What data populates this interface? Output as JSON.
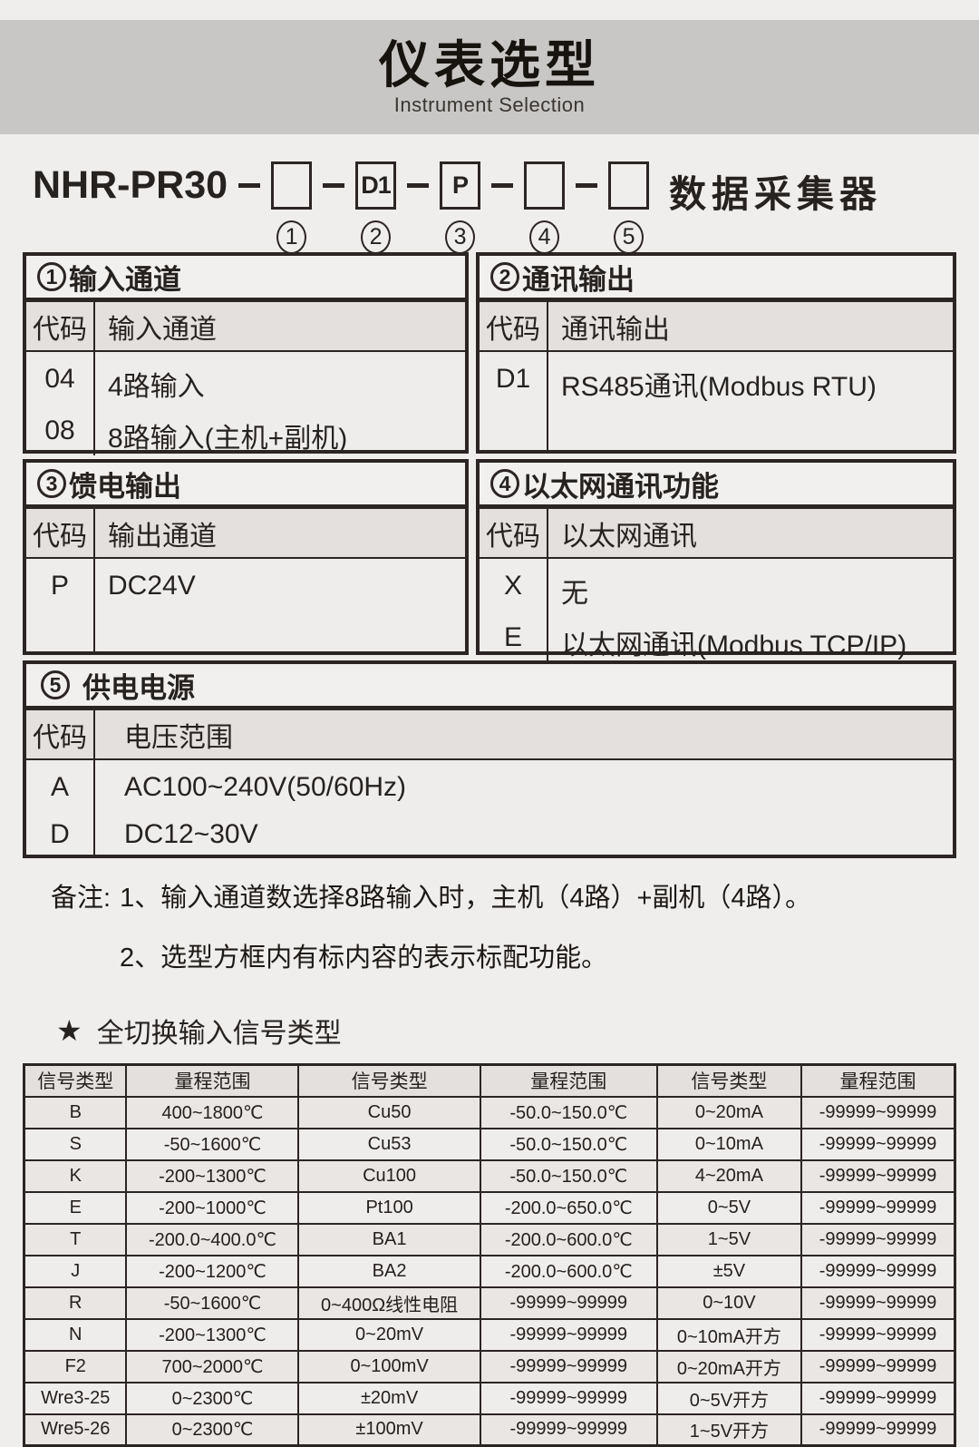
{
  "header": {
    "title": "仪表选型",
    "subtitle": "Instrument Selection"
  },
  "model": {
    "prefix": "NHR-PR30",
    "suffix": "数据采集器",
    "slots": [
      {
        "code": "",
        "num": "1"
      },
      {
        "code": "D1",
        "num": "2"
      },
      {
        "code": "P",
        "num": "3"
      },
      {
        "code": "",
        "num": "4"
      },
      {
        "code": "",
        "num": "5"
      }
    ]
  },
  "sections": [
    {
      "num": "1",
      "title": "输入通道",
      "code_header": "代码",
      "value_header": "输入通道",
      "rows": [
        [
          "04",
          "4路输入"
        ],
        [
          "08",
          "8路输入(主机+副机)"
        ]
      ]
    },
    {
      "num": "2",
      "title": "通讯输出",
      "code_header": "代码",
      "value_header": "通讯输出",
      "rows": [
        [
          "D1",
          "RS485通讯(Modbus RTU)"
        ]
      ]
    },
    {
      "num": "3",
      "title": "馈电输出",
      "code_header": "代码",
      "value_header": "输出通道",
      "rows": [
        [
          "P",
          "DC24V"
        ]
      ]
    },
    {
      "num": "4",
      "title": "以太网通讯功能",
      "code_header": "代码",
      "value_header": "以太网通讯",
      "rows": [
        [
          "X",
          "无"
        ],
        [
          "E",
          "以太网通讯(Modbus TCP/IP)"
        ]
      ]
    },
    {
      "num": "5",
      "title": "供电电源",
      "code_header": "代码",
      "value_header": "电压范围",
      "rows": [
        [
          "A",
          "AC100~240V(50/60Hz)"
        ],
        [
          "D",
          "DC12~30V"
        ]
      ]
    }
  ],
  "notes": {
    "label": "备注:",
    "line1": "1、输入通道数选择8路输入时，主机（4路）+副机（4路）。",
    "line2": "2、选型方框内有标内容的表示标配功能。"
  },
  "signal_table": {
    "star": "★",
    "heading": "全切换输入信号类型",
    "headers": [
      "信号类型",
      "量程范围",
      "信号类型",
      "量程范围",
      "信号类型",
      "量程范围"
    ],
    "rows": [
      [
        "B",
        "400~1800℃",
        "Cu50",
        "-50.0~150.0℃",
        "0~20mA",
        "-99999~99999"
      ],
      [
        "S",
        "-50~1600℃",
        "Cu53",
        "-50.0~150.0℃",
        "0~10mA",
        "-99999~99999"
      ],
      [
        "K",
        "-200~1300℃",
        "Cu100",
        "-50.0~150.0℃",
        "4~20mA",
        "-99999~99999"
      ],
      [
        "E",
        "-200~1000℃",
        "Pt100",
        "-200.0~650.0℃",
        "0~5V",
        "-99999~99999"
      ],
      [
        "T",
        "-200.0~400.0℃",
        "BA1",
        "-200.0~600.0℃",
        "1~5V",
        "-99999~99999"
      ],
      [
        "J",
        "-200~1200℃",
        "BA2",
        "-200.0~600.0℃",
        "±5V",
        "-99999~99999"
      ],
      [
        "R",
        "-50~1600℃",
        "0~400Ω线性电阻",
        "-99999~99999",
        "0~10V",
        "-99999~99999"
      ],
      [
        "N",
        "-200~1300℃",
        "0~20mV",
        "-99999~99999",
        "0~10mA开方",
        "-99999~99999"
      ],
      [
        "F2",
        "700~2000℃",
        "0~100mV",
        "-99999~99999",
        "0~20mA开方",
        "-99999~99999"
      ],
      [
        "Wre3-25",
        "0~2300℃",
        "±20mV",
        "-99999~99999",
        "0~5V开方",
        "-99999~99999"
      ],
      [
        "Wre5-26",
        "0~2300℃",
        "±100mV",
        "-99999~99999",
        "1~5V开方",
        "-99999~99999"
      ]
    ]
  }
}
